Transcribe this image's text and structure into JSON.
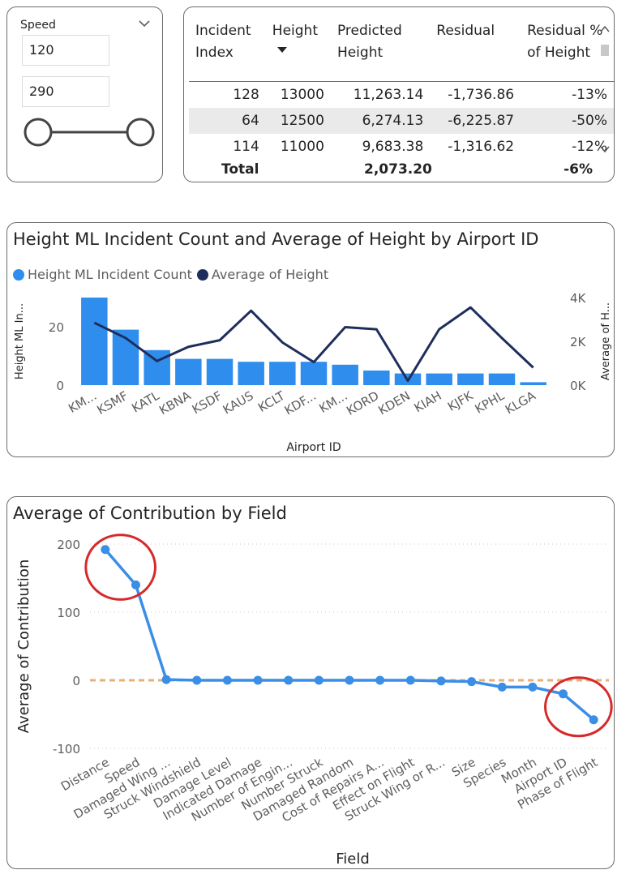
{
  "slicer": {
    "title": "Speed",
    "min_value": "120",
    "max_value": "290",
    "range_min_fraction": 0,
    "range_max_fraction": 1
  },
  "table": {
    "headers": [
      "Incident Index",
      "Height",
      "Predicted Height",
      "Residual",
      "Residual % of Height"
    ],
    "header_lines": [
      [
        "Incident",
        "Index"
      ],
      [
        "Height"
      ],
      [
        "Predicted",
        "Height"
      ],
      [
        "Residual"
      ],
      [
        "Residual %",
        "of Height"
      ]
    ],
    "sorted_column": "Height",
    "rows": [
      [
        "128",
        "13000",
        "11,263.14",
        "-1,736.86",
        "-13%"
      ],
      [
        "64",
        "12500",
        "6,274.13",
        "-6,225.87",
        "-50%"
      ],
      [
        "114",
        "11000",
        "9,683.38",
        "-1,316.62",
        "-12%"
      ]
    ],
    "total": {
      "label": "Total",
      "predicted": "2,073.20",
      "residual_pct": "-6%"
    }
  },
  "colors": {
    "bar_blue": "#2f8ded",
    "line_navy": "#1e2e5c",
    "contribution_line": "#3a8ee6",
    "zero_line": "#e5b07a",
    "annotation_red": "#d62a2a",
    "card_border": "#6b6b6b"
  },
  "chart_data": [
    {
      "type": "bar+line",
      "title": "Height ML Incident Count and Average of Height by Airport ID",
      "xlabel": "Airport ID",
      "ylabel": "Height ML In...",
      "y2label": "Average of H...",
      "categories": [
        "KM...",
        "KSMF",
        "KATL",
        "KBNA",
        "KSDF",
        "KAUS",
        "KCLT",
        "KDF...",
        "KM...",
        "KORD",
        "KDEN",
        "KIAH",
        "KJFK",
        "KPHL",
        "KLGA"
      ],
      "series": [
        {
          "name": "Height ML Incident Count",
          "type": "bar",
          "axis": "left",
          "values": [
            30,
            19,
            12,
            9,
            9,
            8,
            8,
            8,
            7,
            5,
            4,
            4,
            4,
            4,
            1
          ]
        },
        {
          "name": "Average of Height",
          "type": "line",
          "axis": "right",
          "values": [
            2850,
            2150,
            1100,
            1750,
            2050,
            3400,
            1950,
            1050,
            2650,
            2550,
            200,
            2550,
            3550,
            2150,
            800
          ]
        }
      ],
      "ylim": [
        0,
        30
      ],
      "y_ticks": [
        "0",
        "20"
      ],
      "y2lim": [
        0,
        4000
      ],
      "y2_ticks": [
        "0K",
        "2K",
        "4K"
      ],
      "legend_position": "top-left"
    },
    {
      "type": "line",
      "title": "Average of Contribution by Field",
      "xlabel": "Field",
      "ylabel": "Average of Contribution",
      "categories": [
        "Distance",
        "Speed",
        "Damaged Wing ...",
        "Struck Windshield",
        "Damage Level",
        "Indicated Damage",
        "Number of Engin...",
        "Number Struck",
        "Damaged Random",
        "Cost of Repairs A...",
        "Effect on Flight",
        "Struck Wing or R...",
        "Size",
        "Species",
        "Month",
        "Airport ID",
        "Phase of Flight"
      ],
      "values": [
        192,
        140,
        1,
        0,
        0,
        0,
        0,
        0,
        0,
        0,
        0,
        -1,
        -2,
        -10,
        -10,
        -20,
        -58
      ],
      "ylim": [
        -100,
        200
      ],
      "y_ticks": [
        "-100",
        "0",
        "100",
        "200"
      ],
      "grid": true,
      "annotations": "red ellipses around first two and last two points"
    }
  ]
}
